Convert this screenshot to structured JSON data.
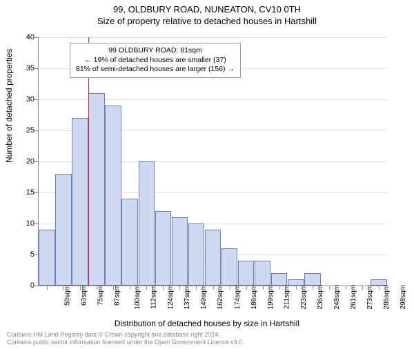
{
  "title_line1": "99, OLDBURY ROAD, NUNEATON, CV10 0TH",
  "title_line2": "Size of property relative to detached houses in Hartshill",
  "ylabel": "Number of detached properties",
  "xlabel": "Distribution of detached houses by size in Hartshill",
  "chart": {
    "type": "histogram",
    "ylim": [
      0,
      40
    ],
    "ytick_step": 5,
    "bar_color": "#ced8f0",
    "bar_border_color": "#6a7db5",
    "grid_color": "#e0e0e0",
    "axis_color": "#888888",
    "background_color": "#ffffff",
    "categories_sqm": [
      50,
      63,
      75,
      87,
      100,
      112,
      124,
      137,
      149,
      162,
      174,
      186,
      199,
      211,
      223,
      236,
      248,
      261,
      273,
      286,
      298
    ],
    "values": [
      9,
      18,
      27,
      31,
      29,
      14,
      20,
      12,
      11,
      10,
      9,
      6,
      4,
      4,
      2,
      1,
      2,
      0,
      0,
      0,
      1
    ],
    "reference_line": {
      "color": "#d02020",
      "x_sqm": 81
    },
    "annotation": {
      "line1": "99 OLDBURY ROAD: 81sqm",
      "line2": "← 19% of detached houses are smaller (37)",
      "line3": "81% of semi-detached houses are larger (156) →",
      "border_color": "#999999",
      "bg_color": "#ffffff",
      "fontsize": 10.5
    }
  },
  "footer_line1": "Contains HM Land Registry data © Crown copyright and database right 2024.",
  "footer_line2": "Contains public sector information licensed under the Open Government Licence v3.0."
}
